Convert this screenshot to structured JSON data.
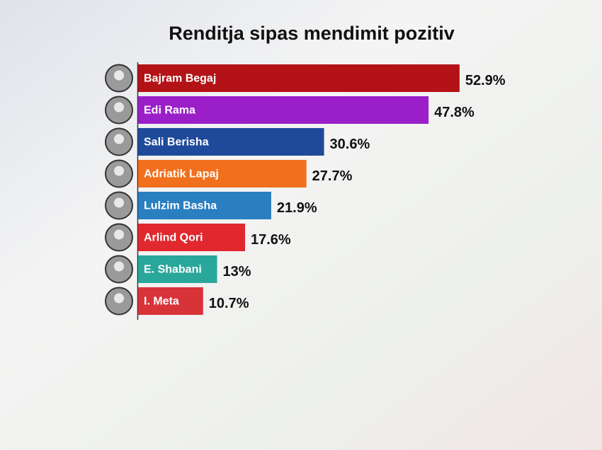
{
  "chart_data": {
    "type": "bar",
    "orientation": "horizontal",
    "title": "Renditja sipas mendimit pozitiv",
    "categories": [
      "Bajram Begaj",
      "Edi Rama",
      "Sali Berisha",
      "Adriatik Lapaj",
      "Lulzim Basha",
      "Arlind Qori",
      "E. Shabani",
      "I. Meta"
    ],
    "values": [
      52.9,
      47.8,
      30.6,
      27.7,
      21.9,
      17.6,
      13,
      10.7
    ],
    "value_labels": [
      "52.9%",
      "47.8%",
      "30.6%",
      "27.7%",
      "21.9%",
      "17.6%",
      "13%",
      "10.7%"
    ],
    "colors": [
      "#b31217",
      "#9b1fc8",
      "#1f4a9c",
      "#f26f1d",
      "#2a7fc0",
      "#e0282e",
      "#2aa79b",
      "#d9333a"
    ]
  }
}
